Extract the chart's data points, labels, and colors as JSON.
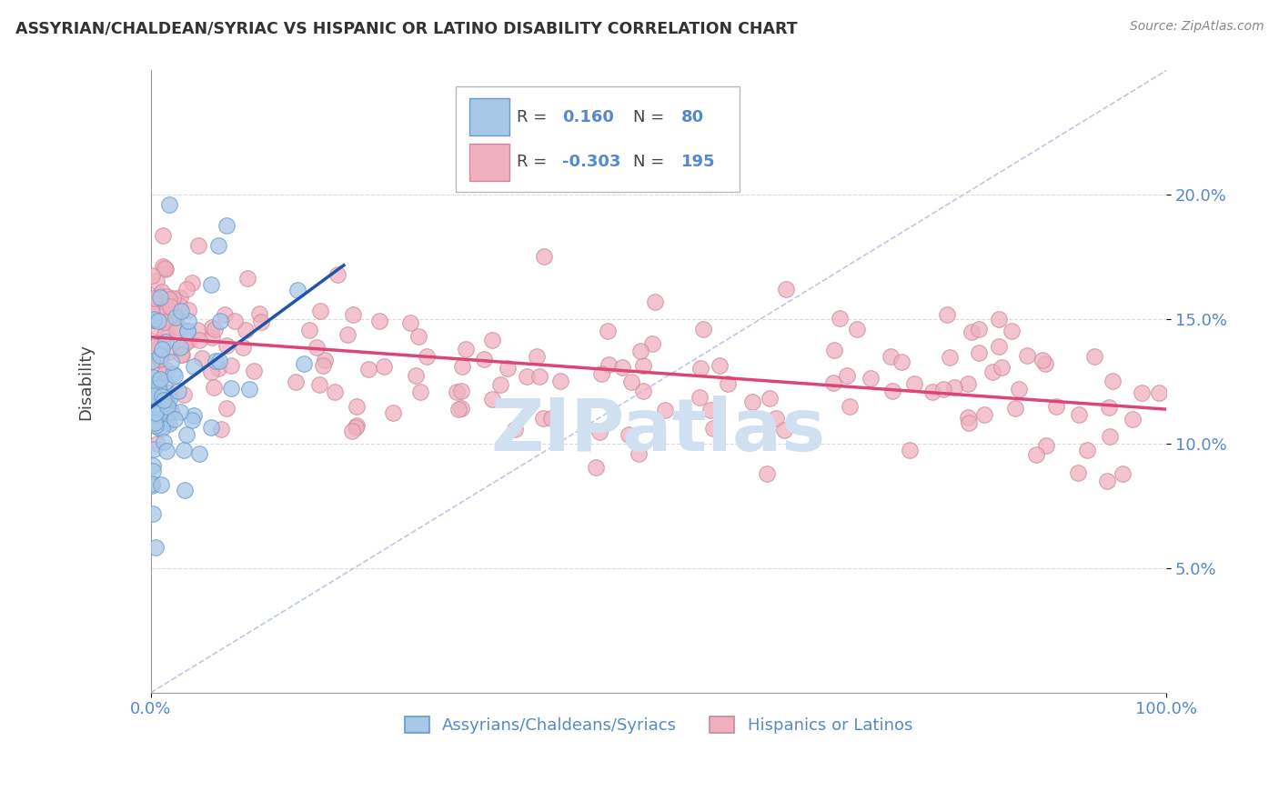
{
  "title": "ASSYRIAN/CHALDEAN/SYRIAC VS HISPANIC OR LATINO DISABILITY CORRELATION CHART",
  "source_text": "Source: ZipAtlas.com",
  "ylabel": "Disability",
  "legend_label_blue": "Assyrians/Chaldeans/Syriacs",
  "legend_label_pink": "Hispanics or Latinos",
  "R_blue": 0.16,
  "N_blue": 80,
  "R_pink": -0.303,
  "N_pink": 195,
  "blue_scatter_color": "#a8c8e8",
  "blue_edge_color": "#6699cc",
  "pink_scatter_color": "#f0b0c0",
  "pink_edge_color": "#cc8899",
  "blue_line_color": "#2255aa",
  "pink_line_color": "#dd4477",
  "diag_line_color": "#aabbdd",
  "tick_color": "#5588cc",
  "grid_color": "#cccccc",
  "watermark_color": "#d0e0f0",
  "xlim": [
    0.0,
    1.0
  ],
  "ylim": [
    0.0,
    0.25
  ],
  "yticks": [
    0.05,
    0.1,
    0.15,
    0.2
  ],
  "ytick_labels": [
    "5.0%",
    "10.0%",
    "15.0%",
    "20.0%"
  ],
  "xtick_labels": [
    "0.0%",
    "100.0%"
  ],
  "background_color": "#ffffff",
  "watermark": "ZIPatlas",
  "blue_seed": 42,
  "pink_seed": 7
}
